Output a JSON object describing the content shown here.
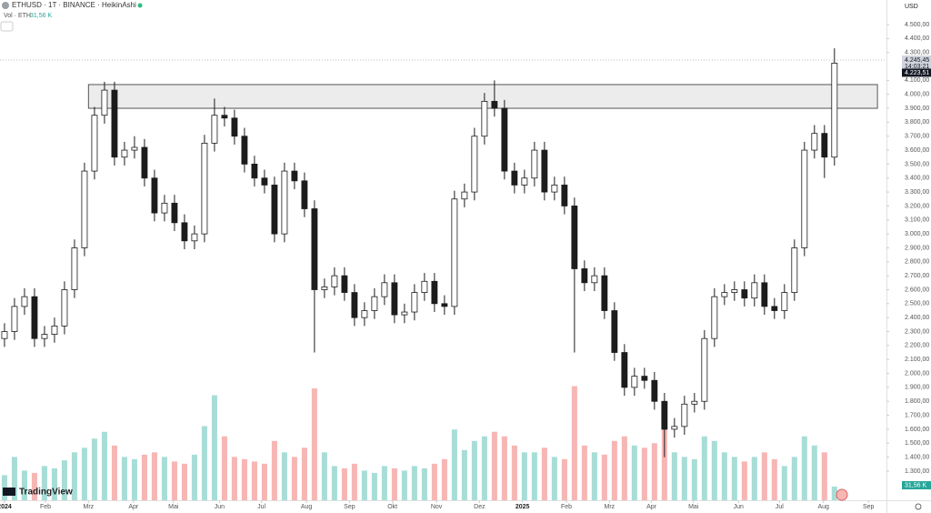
{
  "chart_data": {
    "type": "candlestick",
    "title": "ETHUSD · 1T · BINANCE · HeikinAshi",
    "volume_title": "Vol · ETH",
    "volume_last": "31,56 K",
    "currency": "USD",
    "brand": "TradingView",
    "countdown": "14:03:21",
    "last_price": {
      "value": 4245.45,
      "label": "4.245,45"
    },
    "close_price": {
      "value": 4223.51,
      "label": "4.223,51"
    },
    "candle_color": "#1c1c1c",
    "volume_up_color": "#a8ddd7",
    "volume_down_color": "#f6b6b4",
    "zone": {
      "top": 4070,
      "bottom": 3900,
      "start": 8.4,
      "end": 87.3
    },
    "open": [
      2250,
      2300,
      2480,
      2550,
      2250,
      2280,
      2340,
      2600,
      2900,
      3450,
      3850,
      4030,
      3550,
      3600,
      3620,
      3400,
      3150,
      3220,
      3080,
      2950,
      3000,
      3650,
      3850,
      3830,
      3700,
      3500,
      3400,
      3350,
      3000,
      3450,
      3380,
      3180,
      2600,
      2620,
      2700,
      2580,
      2400,
      2450,
      2550,
      2650,
      2420,
      2440,
      2580,
      2660,
      2500,
      2480,
      3250,
      3300,
      3700,
      3950,
      3900,
      3450,
      3350,
      3400,
      3600,
      3300,
      3350,
      3200,
      2750,
      2650,
      2700,
      2450,
      2150,
      1900,
      1980,
      1950,
      1800,
      1600,
      1620,
      1780,
      1800,
      2250,
      2550,
      2580,
      2600,
      2540,
      2650,
      2480,
      2450,
      2580,
      2900,
      3600,
      3720,
      3550
    ],
    "high": [
      2360,
      2540,
      2610,
      2610,
      2340,
      2400,
      2660,
      2960,
      3510,
      3910,
      4090,
      4090,
      3660,
      3700,
      3680,
      3460,
      3280,
      3280,
      3140,
      3060,
      3710,
      3970,
      3910,
      3890,
      3760,
      3560,
      3460,
      3410,
      3510,
      3510,
      3440,
      3240,
      2680,
      2760,
      2760,
      2640,
      2510,
      2610,
      2710,
      2710,
      2500,
      2640,
      2720,
      2720,
      2560,
      3310,
      3360,
      3760,
      4010,
      4100,
      3960,
      3510,
      3460,
      3660,
      3660,
      3410,
      3410,
      3260,
      2810,
      2760,
      2760,
      2510,
      2210,
      2040,
      2040,
      2010,
      1860,
      1680,
      1840,
      1860,
      2310,
      2610,
      2640,
      2660,
      2660,
      2710,
      2710,
      2540,
      2640,
      2960,
      3660,
      3780,
      3780,
      4330
    ],
    "low": [
      2190,
      2240,
      2420,
      2190,
      2190,
      2220,
      2280,
      2540,
      2840,
      3390,
      3790,
      3490,
      3490,
      3540,
      3340,
      3090,
      3090,
      3020,
      2890,
      2890,
      2940,
      3590,
      3770,
      3640,
      3440,
      3340,
      3290,
      2940,
      2940,
      3320,
      3120,
      2150,
      2540,
      2560,
      2520,
      2340,
      2340,
      2390,
      2490,
      2360,
      2360,
      2380,
      2520,
      2440,
      2420,
      2420,
      3190,
      3240,
      3640,
      3840,
      3390,
      3290,
      3290,
      3340,
      3240,
      3240,
      3140,
      2150,
      2590,
      2590,
      2390,
      2090,
      1840,
      1840,
      1890,
      1740,
      1400,
      1540,
      1560,
      1720,
      1740,
      2190,
      2490,
      2520,
      2480,
      2480,
      2420,
      2390,
      2390,
      2520,
      2840,
      3540,
      3400,
      3490
    ],
    "close": [
      2300,
      2480,
      2550,
      2250,
      2280,
      2340,
      2600,
      2900,
      3450,
      3850,
      4030,
      3550,
      3600,
      3620,
      3400,
      3150,
      3220,
      3080,
      2950,
      3000,
      3650,
      3850,
      3830,
      3700,
      3500,
      3400,
      3350,
      3000,
      3450,
      3380,
      3180,
      2600,
      2620,
      2700,
      2580,
      2400,
      2450,
      2550,
      2650,
      2420,
      2440,
      2580,
      2660,
      2500,
      2480,
      3250,
      3300,
      3700,
      3950,
      3900,
      3450,
      3350,
      3400,
      3600,
      3300,
      3350,
      3200,
      2750,
      2650,
      2700,
      2450,
      2150,
      1900,
      1980,
      1950,
      1800,
      1600,
      1620,
      1780,
      1800,
      2250,
      2550,
      2580,
      2600,
      2540,
      2650,
      2480,
      2450,
      2580,
      2900,
      3600,
      3720,
      3550,
      4223.51
    ],
    "volume": [
      220,
      380,
      260,
      240,
      300,
      280,
      350,
      420,
      460,
      540,
      600,
      480,
      380,
      360,
      400,
      420,
      380,
      340,
      320,
      400,
      650,
      920,
      560,
      380,
      360,
      340,
      320,
      520,
      420,
      380,
      460,
      980,
      420,
      300,
      280,
      320,
      260,
      240,
      300,
      280,
      260,
      300,
      280,
      320,
      360,
      620,
      440,
      520,
      560,
      600,
      560,
      480,
      420,
      420,
      460,
      380,
      360,
      1000,
      480,
      420,
      400,
      520,
      560,
      480,
      460,
      500,
      640,
      420,
      380,
      360,
      560,
      520,
      420,
      380,
      340,
      380,
      420,
      360,
      300,
      380,
      560,
      480,
      420,
      120
    ],
    "vlim": [
      0,
      1100
    ],
    "xlim": [
      -0.45,
      88.2
    ],
    "ylim": [
      1091,
      4676
    ],
    "log_scale": false,
    "grid": false,
    "xticks": [
      {
        "value": 0,
        "label": "2024"
      },
      {
        "value": 4.1,
        "label": "Feb"
      },
      {
        "value": 8.4,
        "label": "Mrz"
      },
      {
        "value": 12.9,
        "label": "Apr"
      },
      {
        "value": 16.9,
        "label": "Mai"
      },
      {
        "value": 21.5,
        "label": "Jun"
      },
      {
        "value": 25.7,
        "label": "Jul"
      },
      {
        "value": 30.2,
        "label": "Aug"
      },
      {
        "value": 34.5,
        "label": "Sep"
      },
      {
        "value": 38.8,
        "label": "Okt"
      },
      {
        "value": 43.2,
        "label": "Nov"
      },
      {
        "value": 47.5,
        "label": "Dez"
      },
      {
        "value": 51.8,
        "label": "2025"
      },
      {
        "value": 56.2,
        "label": "Feb"
      },
      {
        "value": 60.5,
        "label": "Mrz"
      },
      {
        "value": 64.7,
        "label": "Apr"
      },
      {
        "value": 68.9,
        "label": "Mai"
      },
      {
        "value": 73.4,
        "label": "Jun"
      },
      {
        "value": 77.5,
        "label": "Jul"
      },
      {
        "value": 81.9,
        "label": "Aug"
      },
      {
        "value": 86.4,
        "label": "Sep"
      }
    ],
    "yticks": [
      {
        "value": 4500,
        "label": "4.500,00"
      },
      {
        "value": 4400,
        "label": "4.400,00"
      },
      {
        "value": 4300,
        "label": "4.300,00"
      },
      {
        "value": 4100,
        "label": "4.100,00"
      },
      {
        "value": 4000,
        "label": "4.000,00"
      },
      {
        "value": 3900,
        "label": "3.900,00"
      },
      {
        "value": 3800,
        "label": "3.800,00"
      },
      {
        "value": 3700,
        "label": "3.700,00"
      },
      {
        "value": 3600,
        "label": "3.600,00"
      },
      {
        "value": 3500,
        "label": "3.500,00"
      },
      {
        "value": 3400,
        "label": "3.400,00"
      },
      {
        "value": 3300,
        "label": "3.300,00"
      },
      {
        "value": 3200,
        "label": "3.200,00"
      },
      {
        "value": 3100,
        "label": "3.100,00"
      },
      {
        "value": 3000,
        "label": "3.000,00"
      },
      {
        "value": 2900,
        "label": "2.900,00"
      },
      {
        "value": 2800,
        "label": "2.800,00"
      },
      {
        "value": 2700,
        "label": "2.700,00"
      },
      {
        "value": 2600,
        "label": "2.600,00"
      },
      {
        "value": 2500,
        "label": "2.500,00"
      },
      {
        "value": 2400,
        "label": "2.400,00"
      },
      {
        "value": 2300,
        "label": "2.300,00"
      },
      {
        "value": 2200,
        "label": "2.200,00"
      },
      {
        "value": 2100,
        "label": "2.100,00"
      },
      {
        "value": 2000,
        "label": "2.000,00"
      },
      {
        "value": 1900,
        "label": "1.900,00"
      },
      {
        "value": 1800,
        "label": "1.800,00"
      },
      {
        "value": 1700,
        "label": "1.700,00"
      },
      {
        "value": 1600,
        "label": "1.600,00"
      },
      {
        "value": 1500,
        "label": "1.500,00"
      },
      {
        "value": 1400,
        "label": "1.400,00"
      },
      {
        "value": 1300,
        "label": "1.300,00"
      }
    ]
  }
}
